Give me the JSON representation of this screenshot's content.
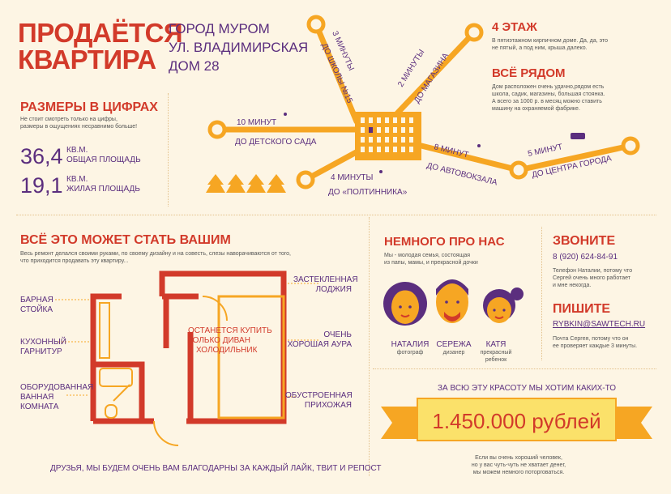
{
  "header": {
    "title_line1": "ПРОДАЁТСЯ",
    "title_line2": "КВАРТИРА",
    "address": [
      "ГОРОД МУРОМ",
      "УЛ. ВЛАДИМИРСКАЯ",
      "ДОМ 28"
    ]
  },
  "sizes": {
    "title": "РАЗМЕРЫ В ЦИФРАХ",
    "note": [
      "Не стоит смотреть только на цифры,",
      "размеры в ощущениях несравнимо больше!"
    ],
    "total_value": "36,4",
    "unit": "КВ.М.",
    "total_label": "ОБЩАЯ ПЛОЩАДЬ",
    "living_value": "19,1",
    "living_label": "ЖИЛАЯ ПЛОЩАДЬ"
  },
  "map": {
    "school": {
      "time": "3 МИНУТЫ",
      "place": "ДО ШКОЛЫ №15"
    },
    "shop": {
      "time": "2 МИНУТЫ",
      "place": "ДО МАГАЗИНА"
    },
    "kindergarten": {
      "time": "10 МИНУТ",
      "place": "ДО ДЕТСКОГО САДА"
    },
    "poltinnik": {
      "time": "4 МИНУТЫ",
      "place": "ДО «ПОЛТИННИКА»"
    },
    "bus_station": {
      "time": "8 МИНУТ",
      "place": "ДО АВТОВОКЗАЛА"
    },
    "center": {
      "time": "5 МИНУТ",
      "place": "ДО ЦЕНТРА ГОРОДА"
    },
    "colors": {
      "orange": "#f6a623",
      "purple": "#5b2e7e",
      "red": "#d23a2a"
    }
  },
  "floor": {
    "title": "4 ЭТАЖ",
    "text": [
      "В пятиэтажном кирпичном доме. Да, да, это",
      "не пятый, а под ним, крыша далеко."
    ]
  },
  "nearby": {
    "title": "ВСЁ РЯДОМ",
    "text": [
      "Дом расположен очень удачно,рядом есть",
      "школа, садик, магазины, большая стоянка.",
      "А всего за 1000 р. в месяц можно ставить",
      "машину на охраняемой фабрике."
    ]
  },
  "plan": {
    "title": "ВСЁ ЭТО МОЖЕТ СТАТЬ ВАШИМ",
    "note": [
      "Весь ремонт делался своими руками, по своему дизайну и на совесть, слезы наворачиваются от того,",
      "что приходится продавать эту квартиру..."
    ],
    "bar_counter": [
      "БАРНАЯ",
      "СТОЙКА"
    ],
    "kitchen": [
      "КУХОННЫЙ",
      "ГАРНИТУР"
    ],
    "bathroom": [
      "ОБОРУДОВАННАЯ",
      "ВАННАЯ",
      "КОМНАТА"
    ],
    "loggia": [
      "ЗАСТЕКЛЕННАЯ",
      "ЛОДЖИЯ"
    ],
    "aura": [
      "ОЧЕНЬ",
      "ХОРОШАЯ АУРА"
    ],
    "hallway": [
      "ОБУСТРОЕННАЯ",
      "ПРИХОЖАЯ"
    ],
    "remains": [
      "ОСТАНЕТСЯ КУПИТЬ",
      "ТОЛЬКО ДИВАН",
      "И ХОЛОДИЛЬНИК"
    ],
    "thanks": "ДРУЗЬЯ, МЫ БУДЕМ ОЧЕНЬ ВАМ БЛАГОДАРНЫ ЗА КАЖДЫЙ ЛАЙК, ТВИТ И РЕПОСТ"
  },
  "about": {
    "title": "НЕМНОГО ПРО НАС",
    "text": [
      "Мы - молодая семья, состоящая",
      "из папы, мамы, и прекрасной дочки"
    ],
    "people": [
      {
        "name": "НАТАЛИЯ",
        "role": [
          "фотограф"
        ]
      },
      {
        "name": "СЕРЕЖА",
        "role": [
          "дизанер"
        ]
      },
      {
        "name": "КАТЯ",
        "role": [
          "прекрасный",
          "ребенок"
        ]
      }
    ]
  },
  "contacts": {
    "call_title": "ЗВОНИТЕ",
    "phone": "8 (920) 624-84-91",
    "call_note": [
      "Телефон Наталии, потому что",
      "Сергей очень много работает",
      "и мне некогда."
    ],
    "write_title": "ПИШИТЕ",
    "email": "RYBKIN@SAWTECH.RU",
    "write_note": [
      "Почта Сергея, потому что он",
      "ее проверяет каждые 3 минуты."
    ]
  },
  "price": {
    "intro": "ЗА ВСЮ ЭТУ КРАСОТУ МЫ ХОТИМ КАКИХ-ТО",
    "amount": "1.450.000 рублей",
    "note": [
      "Если вы очень хороший человек,",
      "но у вас чуть-чуть не хватает денег,",
      "мы можем немного поторговаться."
    ]
  }
}
